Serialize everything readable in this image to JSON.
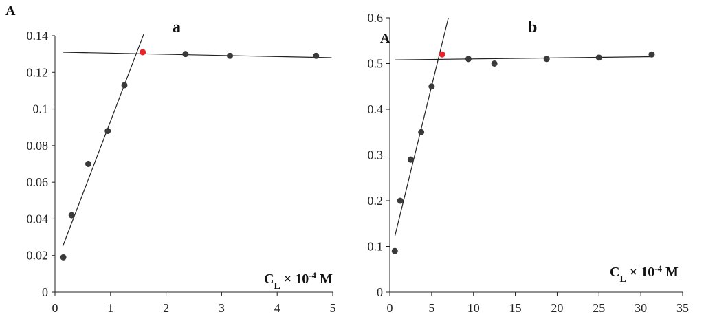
{
  "chart_data": [
    {
      "type": "scatter",
      "title": "a",
      "ylabel": "A",
      "xlabel": "C_L × 10^-4 M",
      "xlabel_parts": {
        "main": "C",
        "sub": "L",
        "mid": " × 10",
        "sup": "-4",
        "unit": " M"
      },
      "xlim": [
        0,
        5
      ],
      "ylim": [
        0,
        0.14
      ],
      "xticks": [
        "0",
        "1",
        "2",
        "3",
        "4",
        "5"
      ],
      "yticks": [
        "0",
        "0.02",
        "0.04",
        "0.06",
        "0.08",
        "0.1",
        "0.12",
        "0.14"
      ],
      "grid": false,
      "colors": {
        "point": "#3a3a3a",
        "highlight": "#e8232a",
        "line": "#222222"
      },
      "points": [
        {
          "x": 0.15,
          "y": 0.019
        },
        {
          "x": 0.3,
          "y": 0.042
        },
        {
          "x": 0.6,
          "y": 0.07
        },
        {
          "x": 0.95,
          "y": 0.088
        },
        {
          "x": 1.25,
          "y": 0.113
        },
        {
          "x": 1.58,
          "y": 0.131,
          "highlight": true
        },
        {
          "x": 2.35,
          "y": 0.13
        },
        {
          "x": 3.15,
          "y": 0.129
        },
        {
          "x": 4.7,
          "y": 0.129
        }
      ],
      "fit_lines": [
        {
          "x1": 0.14,
          "y1": 0.025,
          "x2": 1.6,
          "y2": 0.141
        },
        {
          "x1": 0.15,
          "y1": 0.131,
          "x2": 4.98,
          "y2": 0.128
        }
      ]
    },
    {
      "type": "scatter",
      "title": "b",
      "ylabel": "A",
      "xlabel": "C_L × 10^-4 M",
      "xlabel_parts": {
        "main": "C",
        "sub": "L",
        "mid": " × 10",
        "sup": "-4",
        "unit": " M"
      },
      "xlim": [
        0,
        35
      ],
      "ylim": [
        0,
        0.6
      ],
      "xticks": [
        "0",
        "5",
        "10",
        "15",
        "20",
        "25",
        "30",
        "35"
      ],
      "yticks": [
        "0",
        "0.1",
        "0.2",
        "0.3",
        "0.4",
        "0.5",
        "0.6"
      ],
      "grid": false,
      "colors": {
        "point": "#3a3a3a",
        "highlight": "#e8232a",
        "line": "#222222"
      },
      "points": [
        {
          "x": 0.6,
          "y": 0.09
        },
        {
          "x": 1.25,
          "y": 0.2
        },
        {
          "x": 2.5,
          "y": 0.29
        },
        {
          "x": 3.75,
          "y": 0.35
        },
        {
          "x": 5.0,
          "y": 0.45
        },
        {
          "x": 6.25,
          "y": 0.52,
          "highlight": true
        },
        {
          "x": 9.4,
          "y": 0.51
        },
        {
          "x": 12.5,
          "y": 0.5
        },
        {
          "x": 18.75,
          "y": 0.51
        },
        {
          "x": 25.0,
          "y": 0.513
        },
        {
          "x": 31.3,
          "y": 0.52
        }
      ],
      "fit_lines": [
        {
          "x1": 0.6,
          "y1": 0.122,
          "x2": 7.0,
          "y2": 0.6
        },
        {
          "x1": 0.6,
          "y1": 0.508,
          "x2": 31.5,
          "y2": 0.515
        }
      ]
    }
  ]
}
